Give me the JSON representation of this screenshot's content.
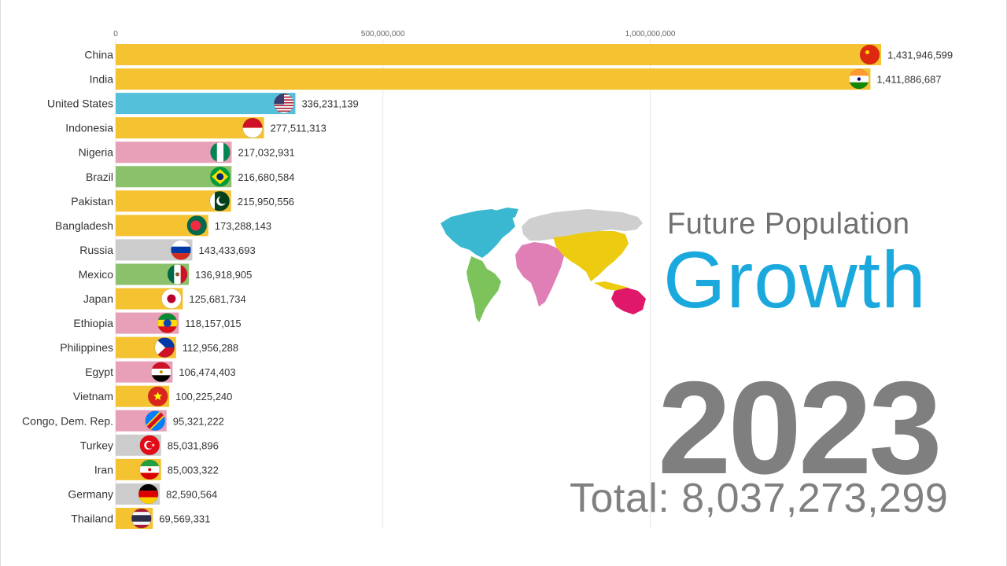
{
  "header": {
    "subtitle": "Future Population",
    "title": "Growth",
    "year": "2023",
    "total_label": "Total:",
    "total_value": "8,037,273,299"
  },
  "colors": {
    "asia": "#f5c231",
    "americas_north": "#55c0d9",
    "americas_latin": "#8bc16a",
    "africa": "#e8a0b8",
    "europe": "#cccccc",
    "title_blue": "#1ba9dd"
  },
  "chart_data": {
    "type": "bar",
    "orientation": "horizontal",
    "xlim": [
      0,
      1431946599
    ],
    "xticks": [
      {
        "value": 0,
        "label": "0"
      },
      {
        "value": 500000000,
        "label": "500,000,000"
      },
      {
        "value": 1000000000,
        "label": "1,000,000,000"
      }
    ],
    "grid": true,
    "bars": [
      {
        "name": "China",
        "value": 1431946599,
        "label": "1,431,946,599",
        "region": "asia",
        "flag": "china-flag-icon"
      },
      {
        "name": "India",
        "value": 1411886687,
        "label": "1,411,886,687",
        "region": "asia",
        "flag": "india-flag-icon"
      },
      {
        "name": "United States",
        "value": 336231139,
        "label": "336,231,139",
        "region": "americas_north",
        "flag": "usa-flag-icon"
      },
      {
        "name": "Indonesia",
        "value": 277511313,
        "label": "277,511,313",
        "region": "asia",
        "flag": "indonesia-flag-icon"
      },
      {
        "name": "Nigeria",
        "value": 217032931,
        "label": "217,032,931",
        "region": "africa",
        "flag": "nigeria-flag-icon"
      },
      {
        "name": "Brazil",
        "value": 216680584,
        "label": "216,680,584",
        "region": "americas_latin",
        "flag": "brazil-flag-icon"
      },
      {
        "name": "Pakistan",
        "value": 215950556,
        "label": "215,950,556",
        "region": "asia",
        "flag": "pakistan-flag-icon"
      },
      {
        "name": "Bangladesh",
        "value": 173288143,
        "label": "173,288,143",
        "region": "asia",
        "flag": "bangladesh-flag-icon"
      },
      {
        "name": "Russia",
        "value": 143433693,
        "label": "143,433,693",
        "region": "europe",
        "flag": "russia-flag-icon"
      },
      {
        "name": "Mexico",
        "value": 136918905,
        "label": "136,918,905",
        "region": "americas_latin",
        "flag": "mexico-flag-icon"
      },
      {
        "name": "Japan",
        "value": 125681734,
        "label": "125,681,734",
        "region": "asia",
        "flag": "japan-flag-icon"
      },
      {
        "name": "Ethiopia",
        "value": 118157015,
        "label": "118,157,015",
        "region": "africa",
        "flag": "ethiopia-flag-icon"
      },
      {
        "name": "Philippines",
        "value": 112956288,
        "label": "112,956,288",
        "region": "asia",
        "flag": "philippines-flag-icon"
      },
      {
        "name": "Egypt",
        "value": 106474403,
        "label": "106,474,403",
        "region": "africa",
        "flag": "egypt-flag-icon"
      },
      {
        "name": "Vietnam",
        "value": 100225240,
        "label": "100,225,240",
        "region": "asia",
        "flag": "vietnam-flag-icon"
      },
      {
        "name": "Congo, Dem. Rep.",
        "value": 95321222,
        "label": "95,321,222",
        "region": "africa",
        "flag": "congo-flag-icon"
      },
      {
        "name": "Turkey",
        "value": 85031896,
        "label": "85,031,896",
        "region": "europe",
        "flag": "turkey-flag-icon"
      },
      {
        "name": "Iran",
        "value": 85003322,
        "label": "85,003,322",
        "region": "asia",
        "flag": "iran-flag-icon"
      },
      {
        "name": "Germany",
        "value": 82590564,
        "label": "82,590,564",
        "region": "europe",
        "flag": "germany-flag-icon"
      },
      {
        "name": "Thailand",
        "value": 69569331,
        "label": "69,569,331",
        "region": "asia",
        "flag": "thailand-flag-icon"
      }
    ]
  }
}
